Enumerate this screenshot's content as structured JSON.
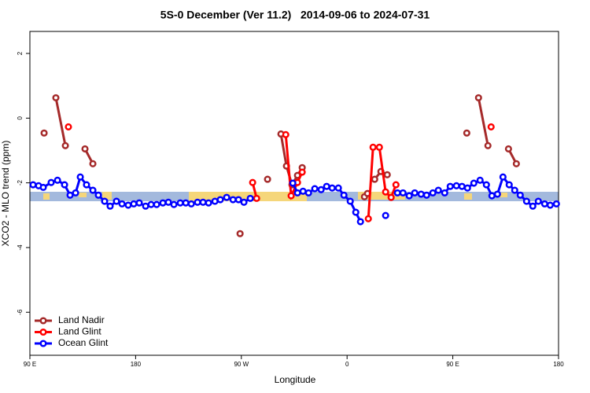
{
  "chart_data": {
    "type": "line",
    "title": "5S-0 December (Ver 11.2)   2014-09-06 to 2024-07-31",
    "x_label": "Longitude",
    "y_label": "XCO2 - MLO trend (ppm)",
    "xlim": [
      90,
      540
    ],
    "ylim": [
      -7.33,
      2.68
    ],
    "xticks": [
      {
        "value": 90,
        "label": "90 E"
      },
      180,
      {
        "value": 270,
        "label": "90 W"
      },
      {
        "value": 360,
        "label": "0"
      },
      {
        "value": 450,
        "label": "90 E"
      },
      {
        "value": 540,
        "label": "180"
      }
    ],
    "yticks": [
      -6,
      -4,
      -2,
      0,
      2
    ],
    "legend": "bottom-left",
    "series": [
      {
        "name": "Land Nadir",
        "color": "#a52a2a",
        "x": [
          102.1,
          null,
          112.1,
          120.2,
          null,
          136.9,
          143.6,
          null,
          268.9,
          null,
          292.3,
          null,
          303.7,
          308.4,
          313.1,
          317.8,
          321.8,
          null,
          374.8,
          377.4,
          null,
          383.5,
          388.8,
          394.2,
          null,
          461.9,
          null,
          471.9,
          479.9,
          null,
          497.4,
          504.1
        ],
        "values": [
          -0.46,
          null,
          0.63,
          -0.85,
          null,
          -0.95,
          -1.41,
          null,
          -3.57,
          null,
          -1.89,
          null,
          -0.49,
          -1.48,
          -2.06,
          -1.77,
          -1.53,
          null,
          -2.43,
          -2.33,
          null,
          -1.89,
          -1.65,
          -1.75,
          null,
          -0.46,
          null,
          0.63,
          -0.85,
          null,
          -0.95,
          -1.41
        ]
      },
      {
        "name": "Land Glint",
        "color": "#ff0000",
        "x": [
          122.8,
          null,
          279.6,
          283,
          null,
          307.8,
          312.4,
          317.8,
          321.8,
          null,
          378.1,
          382.1,
          387.5,
          392.8,
          397.5,
          401.6,
          null,
          482.6
        ],
        "values": [
          -0.27,
          null,
          -1.99,
          -2.48,
          null,
          -0.51,
          -2.4,
          -1.99,
          -1.67,
          null,
          -3.11,
          -0.9,
          -0.9,
          -2.28,
          -2.45,
          -2.06,
          null,
          -0.27
        ]
      },
      {
        "name": "Ocean Glint",
        "color": "#0000ff",
        "x": [
          92.7,
          97.4,
          101.4,
          108.1,
          113.5,
          119.5,
          124.2,
          128.9,
          132.9,
          138.2,
          143.6,
          148.3,
          153.6,
          158.3,
          163.7,
          168.4,
          173.7,
          178.4,
          183.1,
          188.5,
          193.2,
          197.9,
          203.2,
          207.9,
          212.6,
          218,
          222.7,
          227.4,
          232.7,
          237.4,
          242.1,
          247.5,
          252.1,
          257.5,
          262.9,
          267.6,
          272.2,
          277.6,
          null,
          313.8,
          317.8,
          322.5,
          327.2,
          332.5,
          337.9,
          342.6,
          347.3,
          352.6,
          357.3,
          362.7,
          367.4,
          371.4,
          null,
          392.8,
          null,
          402.9,
          407.6,
          412.9,
          417.6,
          423,
          427.7,
          433,
          437.7,
          443.1,
          447.8,
          453.1,
          457.8,
          462.5,
          467.9,
          473.2,
          478.6,
          483.3,
          488,
          492.7,
          498,
          502.7,
          507.4,
          512.8,
          518.1,
          522.8,
          528.2,
          532.9,
          538.2
        ],
        "values": [
          -2.06,
          -2.09,
          -2.14,
          -1.99,
          -1.92,
          -2.06,
          -2.38,
          -2.31,
          -1.82,
          -2.06,
          -2.23,
          -2.38,
          -2.57,
          -2.72,
          -2.57,
          -2.65,
          -2.69,
          -2.65,
          -2.62,
          -2.72,
          -2.67,
          -2.67,
          -2.62,
          -2.6,
          -2.67,
          -2.62,
          -2.62,
          -2.65,
          -2.6,
          -2.6,
          -2.62,
          -2.57,
          -2.52,
          -2.45,
          -2.52,
          -2.52,
          -2.6,
          -2.48,
          null,
          -2.01,
          -2.31,
          -2.26,
          -2.31,
          -2.18,
          -2.21,
          -2.11,
          -2.16,
          -2.16,
          -2.38,
          -2.57,
          -2.91,
          -3.2,
          null,
          -3.01,
          null,
          -2.31,
          -2.31,
          -2.4,
          -2.31,
          -2.35,
          -2.38,
          -2.31,
          -2.23,
          -2.31,
          -2.11,
          -2.09,
          -2.11,
          -2.16,
          -2.01,
          -1.92,
          -2.06,
          -2.4,
          -2.35,
          -1.82,
          -2.06,
          -2.23,
          -2.38,
          -2.57,
          -2.72,
          -2.57,
          -2.65,
          -2.69,
          -2.65
        ]
      }
    ]
  }
}
